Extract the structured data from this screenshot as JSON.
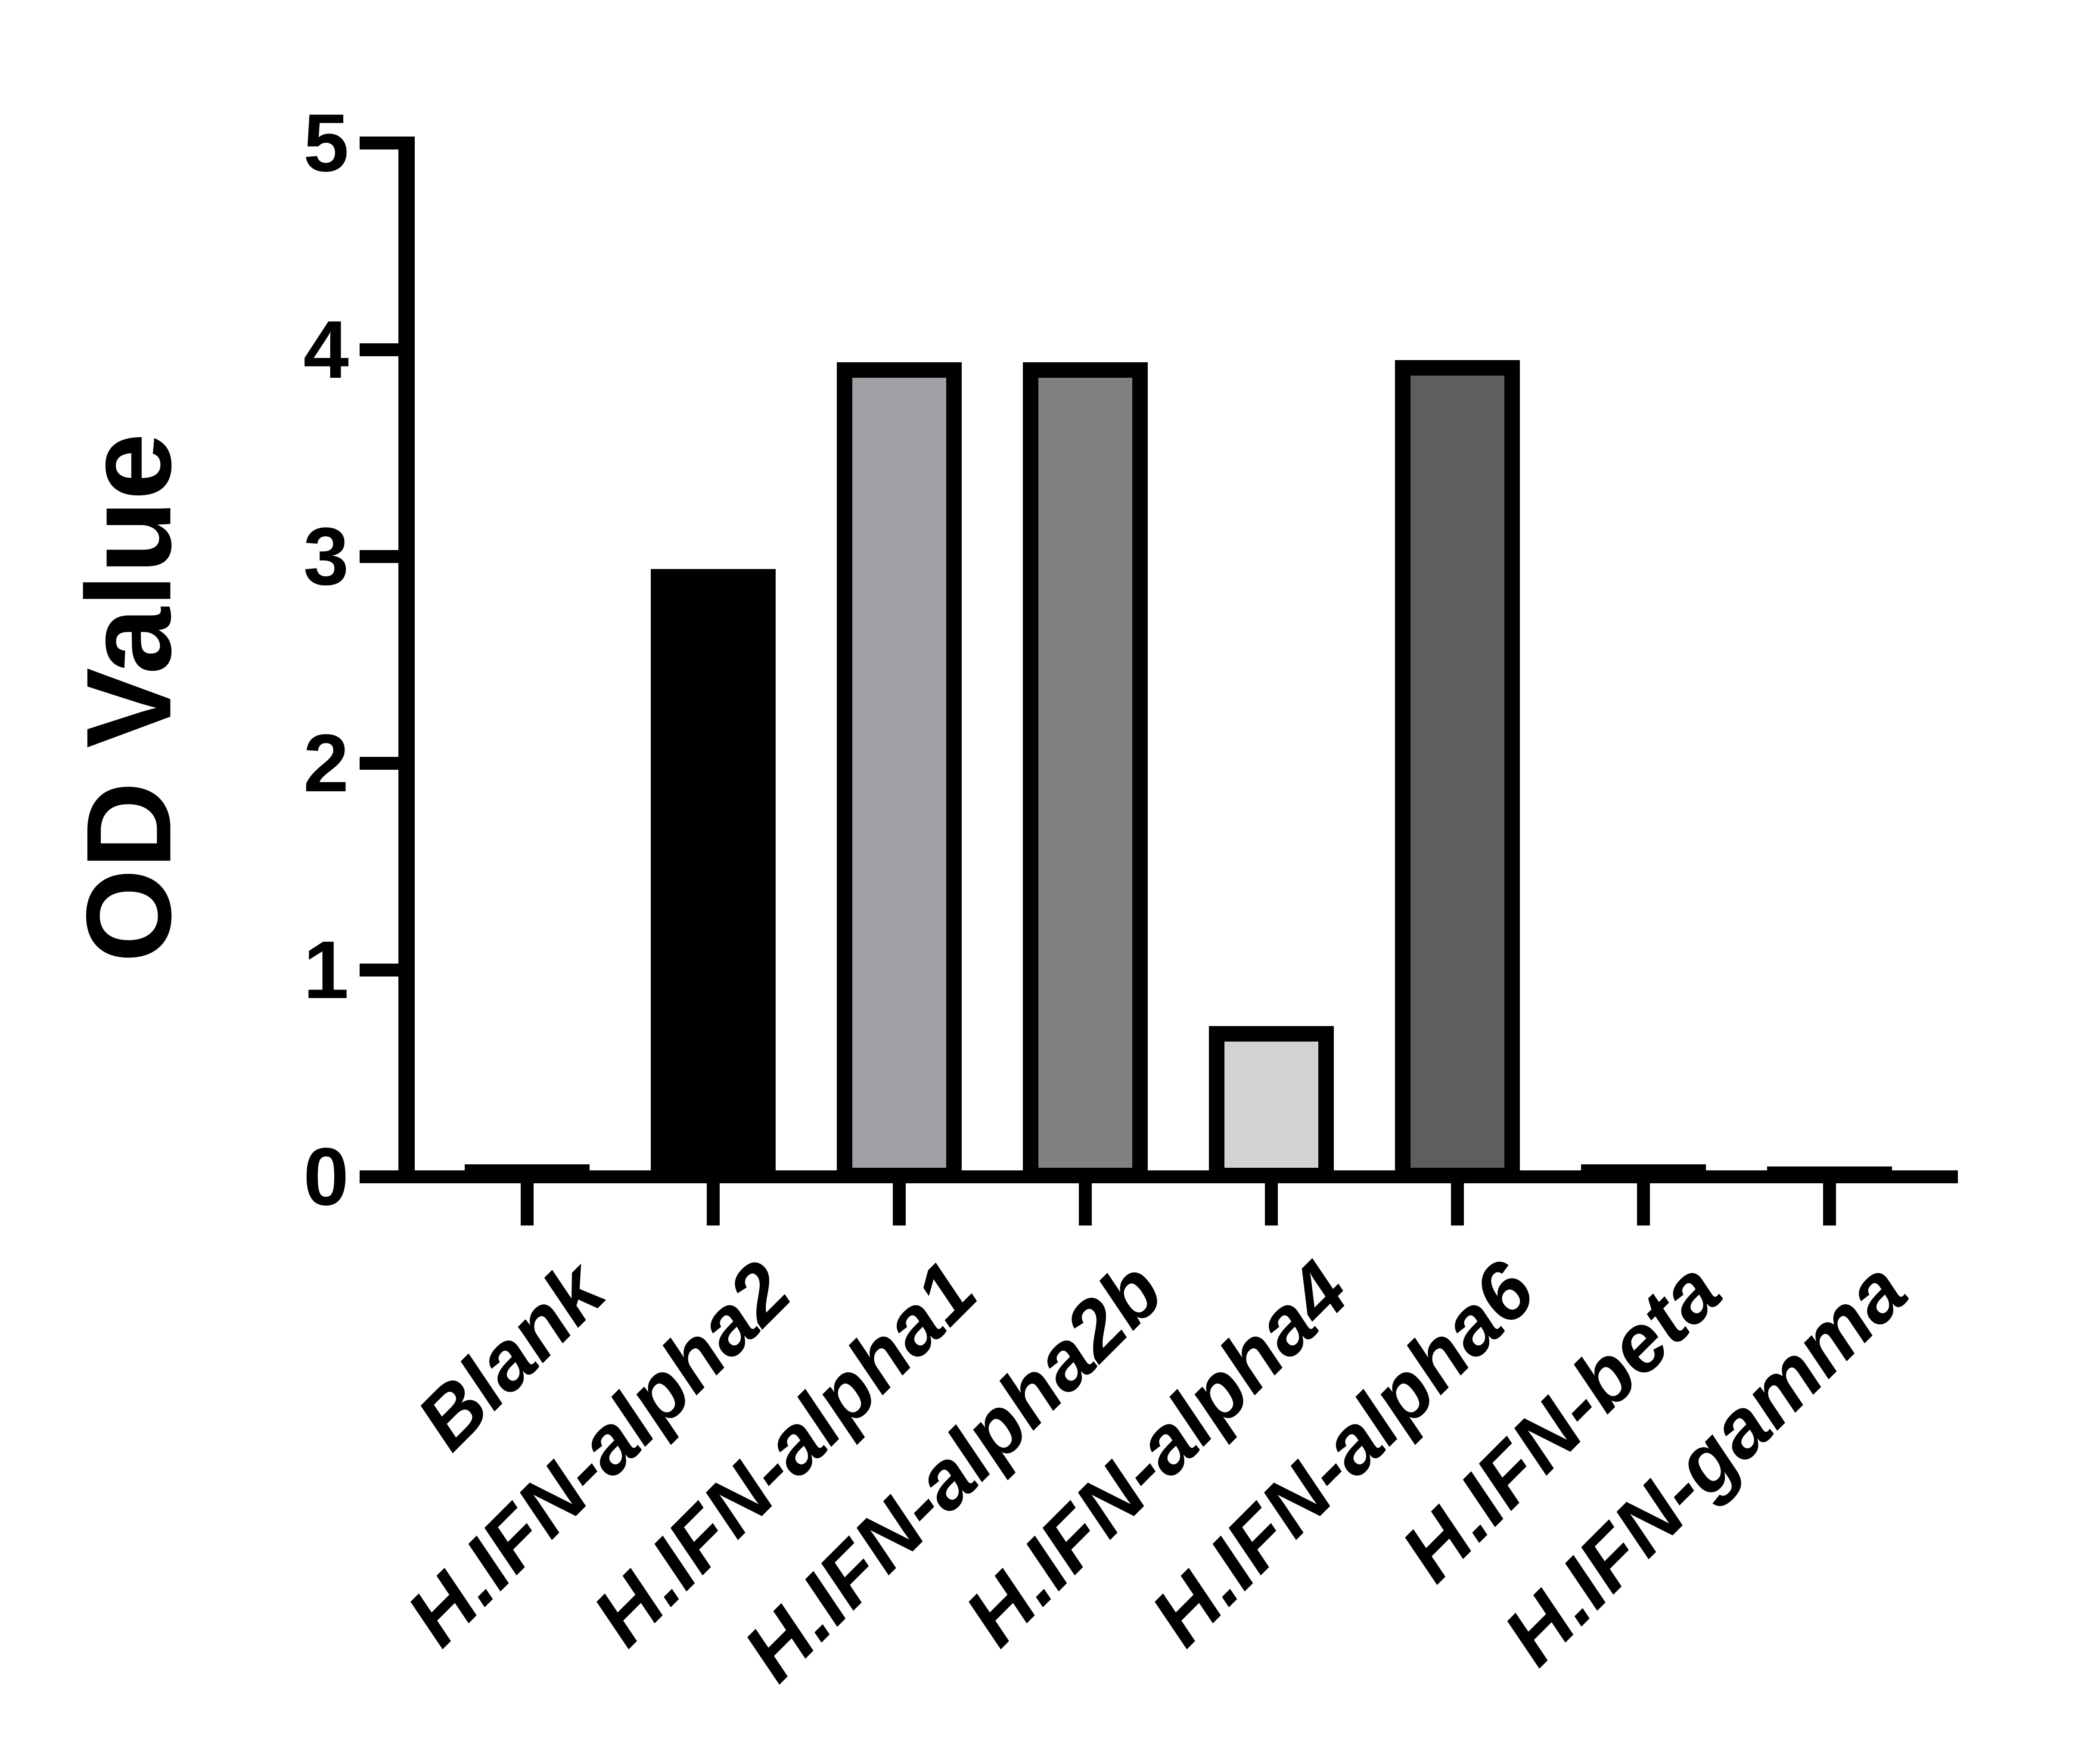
{
  "figure": {
    "background": "#ffffff",
    "axis_color": "#000000",
    "text_color": "#000000"
  },
  "chart_data": {
    "type": "bar",
    "title": "",
    "xlabel": "",
    "ylabel": "OD Value",
    "ylim": [
      0,
      5
    ],
    "yticks": [
      "0",
      "1",
      "2",
      "3",
      "4",
      "5"
    ],
    "grid": false,
    "legend_position": "none",
    "categories": [
      "Blank",
      "H.IFN-alpha2",
      "H.IFN-alpha1",
      "H.IFN-alpha2b",
      "H.IFN-alpha4",
      "H.IFN-alpha6",
      "H.IFN-beta",
      "H.IFN-gamma"
    ],
    "series": [
      {
        "name": "OD Value",
        "values": [
          0.06,
          2.94,
          3.94,
          3.94,
          0.73,
          3.95,
          0.06,
          0.05
        ]
      }
    ],
    "bar_fill_colors": [
      "#000000",
      "#000000",
      "#A0A0A5",
      "#818181",
      "#D2D2D2",
      "#5E5E5E",
      "#000000",
      "#000000"
    ],
    "bar_border_color": "#000000"
  }
}
